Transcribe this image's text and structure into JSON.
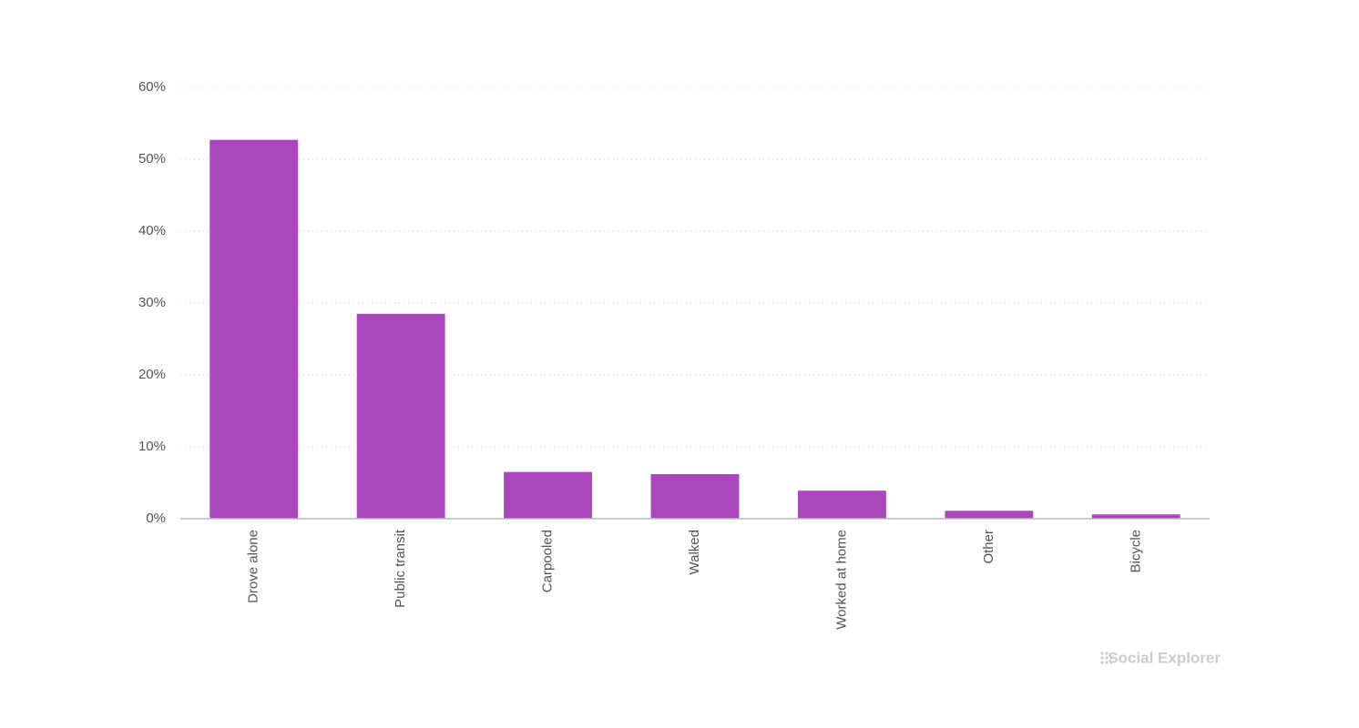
{
  "chart_data": {
    "type": "bar",
    "categories": [
      "Drove alone",
      "Public transit",
      "Carpooled",
      "Walked",
      "Worked at home",
      "Other",
      "Bicycle"
    ],
    "values": [
      52.7,
      28.5,
      6.5,
      6.2,
      3.9,
      1.1,
      0.6
    ],
    "color": "#ab47bc",
    "ylim": [
      0,
      60
    ],
    "yticks": [
      {
        "value": 0,
        "label": "0%"
      },
      {
        "value": 10,
        "label": "10%"
      },
      {
        "value": 20,
        "label": "20%"
      },
      {
        "value": 30,
        "label": "30%"
      },
      {
        "value": 40,
        "label": "40%"
      },
      {
        "value": 50,
        "label": "50%"
      },
      {
        "value": 60,
        "label": "60%"
      }
    ],
    "grid": true,
    "watermark": "Social Explorer"
  }
}
